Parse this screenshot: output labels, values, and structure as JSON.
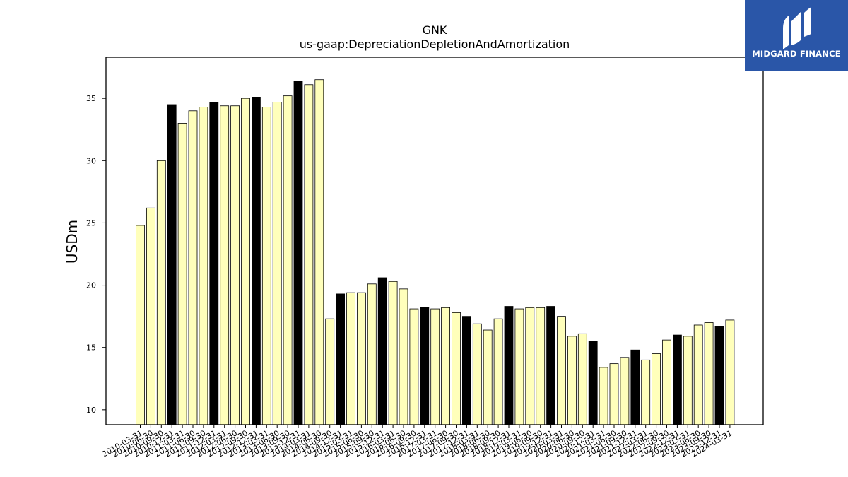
{
  "brand": {
    "name": "MIDGARD FINANCE",
    "logo_icon": "midgard-m-mark-icon",
    "bg_color": "#2a56a8"
  },
  "colors": {
    "bar_light": "#ffffbb",
    "bar_dark": "#000000",
    "edge": "#000000"
  },
  "chart_data": {
    "type": "bar",
    "title": "GNK",
    "subtitle": "us-gaap:DepreciationDepletionAndAmortization",
    "xlabel": "",
    "ylabel": "USDm",
    "ylim": [
      8.8,
      38.3
    ],
    "yticks": [
      10,
      15,
      20,
      25,
      30,
      35
    ],
    "grid": false,
    "categories": [
      "2010-03-31",
      "2010-06-30",
      "2010-09-30",
      "2010-12-31",
      "2011-03-31",
      "2011-06-30",
      "2011-09-30",
      "2011-12-31",
      "2012-03-31",
      "2012-06-30",
      "2012-09-30",
      "2012-12-31",
      "2013-03-31",
      "2013-06-30",
      "2013-09-30",
      "2013-12-31",
      "2014-03-31",
      "2014-06-30",
      "2014-09-30",
      "2014-12-31",
      "2015-03-31",
      "2015-06-30",
      "2015-09-30",
      "2015-12-31",
      "2016-03-31",
      "2016-06-30",
      "2016-09-30",
      "2016-12-31",
      "2017-03-31",
      "2017-06-30",
      "2017-09-30",
      "2017-12-31",
      "2018-03-31",
      "2018-06-30",
      "2018-09-30",
      "2018-12-31",
      "2019-03-31",
      "2019-06-30",
      "2019-09-30",
      "2019-12-31",
      "2020-03-31",
      "2020-06-30",
      "2020-09-30",
      "2020-12-31",
      "2021-03-31",
      "2021-06-30",
      "2021-09-30",
      "2021-12-31",
      "2022-03-31",
      "2022-06-30",
      "2022-09-30",
      "2022-12-31",
      "2023-03-31",
      "2023-06-30",
      "2023-09-30",
      "2023-12-31",
      "2024-03-31"
    ],
    "tick_labels": [
      "2010-03-31",
      "2010-06-30",
      "2010-09-30",
      "2010-12-31",
      "2011-03-31",
      "2011-06-30",
      "2011-09-30",
      "2011-12-31",
      "2012-03-31",
      "2012-06-30",
      "2012-09-30",
      "2012-12-31",
      "2013-03-31",
      "2013-06-30",
      "2013-09-30",
      "2013-12-31",
      "2014-03-31",
      "2014-06-30",
      "2014-09-30",
      "2014-12-31",
      "2015-03-31",
      "2015-06-30",
      "2015-09-30",
      "2015-12-31",
      "2016-03-31",
      "2016-06-30",
      "2016-09-30",
      "2016-12-31",
      "2017-03-31",
      "2017-06-30",
      "2017-09-30",
      "2017-12-31",
      "2018-03-31",
      "2018-06-30",
      "2018-09-30",
      "2018-12-31",
      "2019-03-31",
      "2019-06-30",
      "2019-09-30",
      "2019-12-31",
      "2020-03-31",
      "2020-06-30",
      "2020-09-30",
      "2020-12-31",
      "2021-03-31",
      "2021-06-30",
      "2021-09-30",
      "2021-12-31",
      "2022-03-31",
      "2022-06-30",
      "2022-09-30",
      "2022-12-31",
      "2023-03-31",
      "2023-06-30",
      "2023-09-30",
      "2023-12-31",
      "2024-03-31"
    ],
    "values": [
      24.8,
      26.2,
      30.0,
      34.5,
      33.0,
      34.0,
      34.3,
      34.7,
      34.4,
      34.4,
      35.0,
      35.1,
      34.3,
      34.7,
      35.2,
      36.4,
      36.1,
      36.5,
      17.3,
      19.3,
      19.4,
      19.4,
      20.1,
      20.6,
      20.3,
      19.7,
      18.1,
      18.2,
      18.1,
      18.2,
      17.8,
      17.5,
      16.9,
      16.4,
      17.3,
      18.3,
      18.1,
      18.2,
      18.2,
      18.3,
      17.5,
      15.9,
      16.1,
      15.5,
      13.4,
      13.7,
      14.2,
      14.8,
      14.0,
      14.5,
      15.6,
      16.0,
      15.9,
      16.8,
      17.0,
      16.7,
      17.2
    ],
    "dark_bars": [
      3,
      7,
      11,
      15,
      19,
      23,
      27,
      31,
      35,
      39,
      43,
      47,
      51,
      55
    ]
  }
}
